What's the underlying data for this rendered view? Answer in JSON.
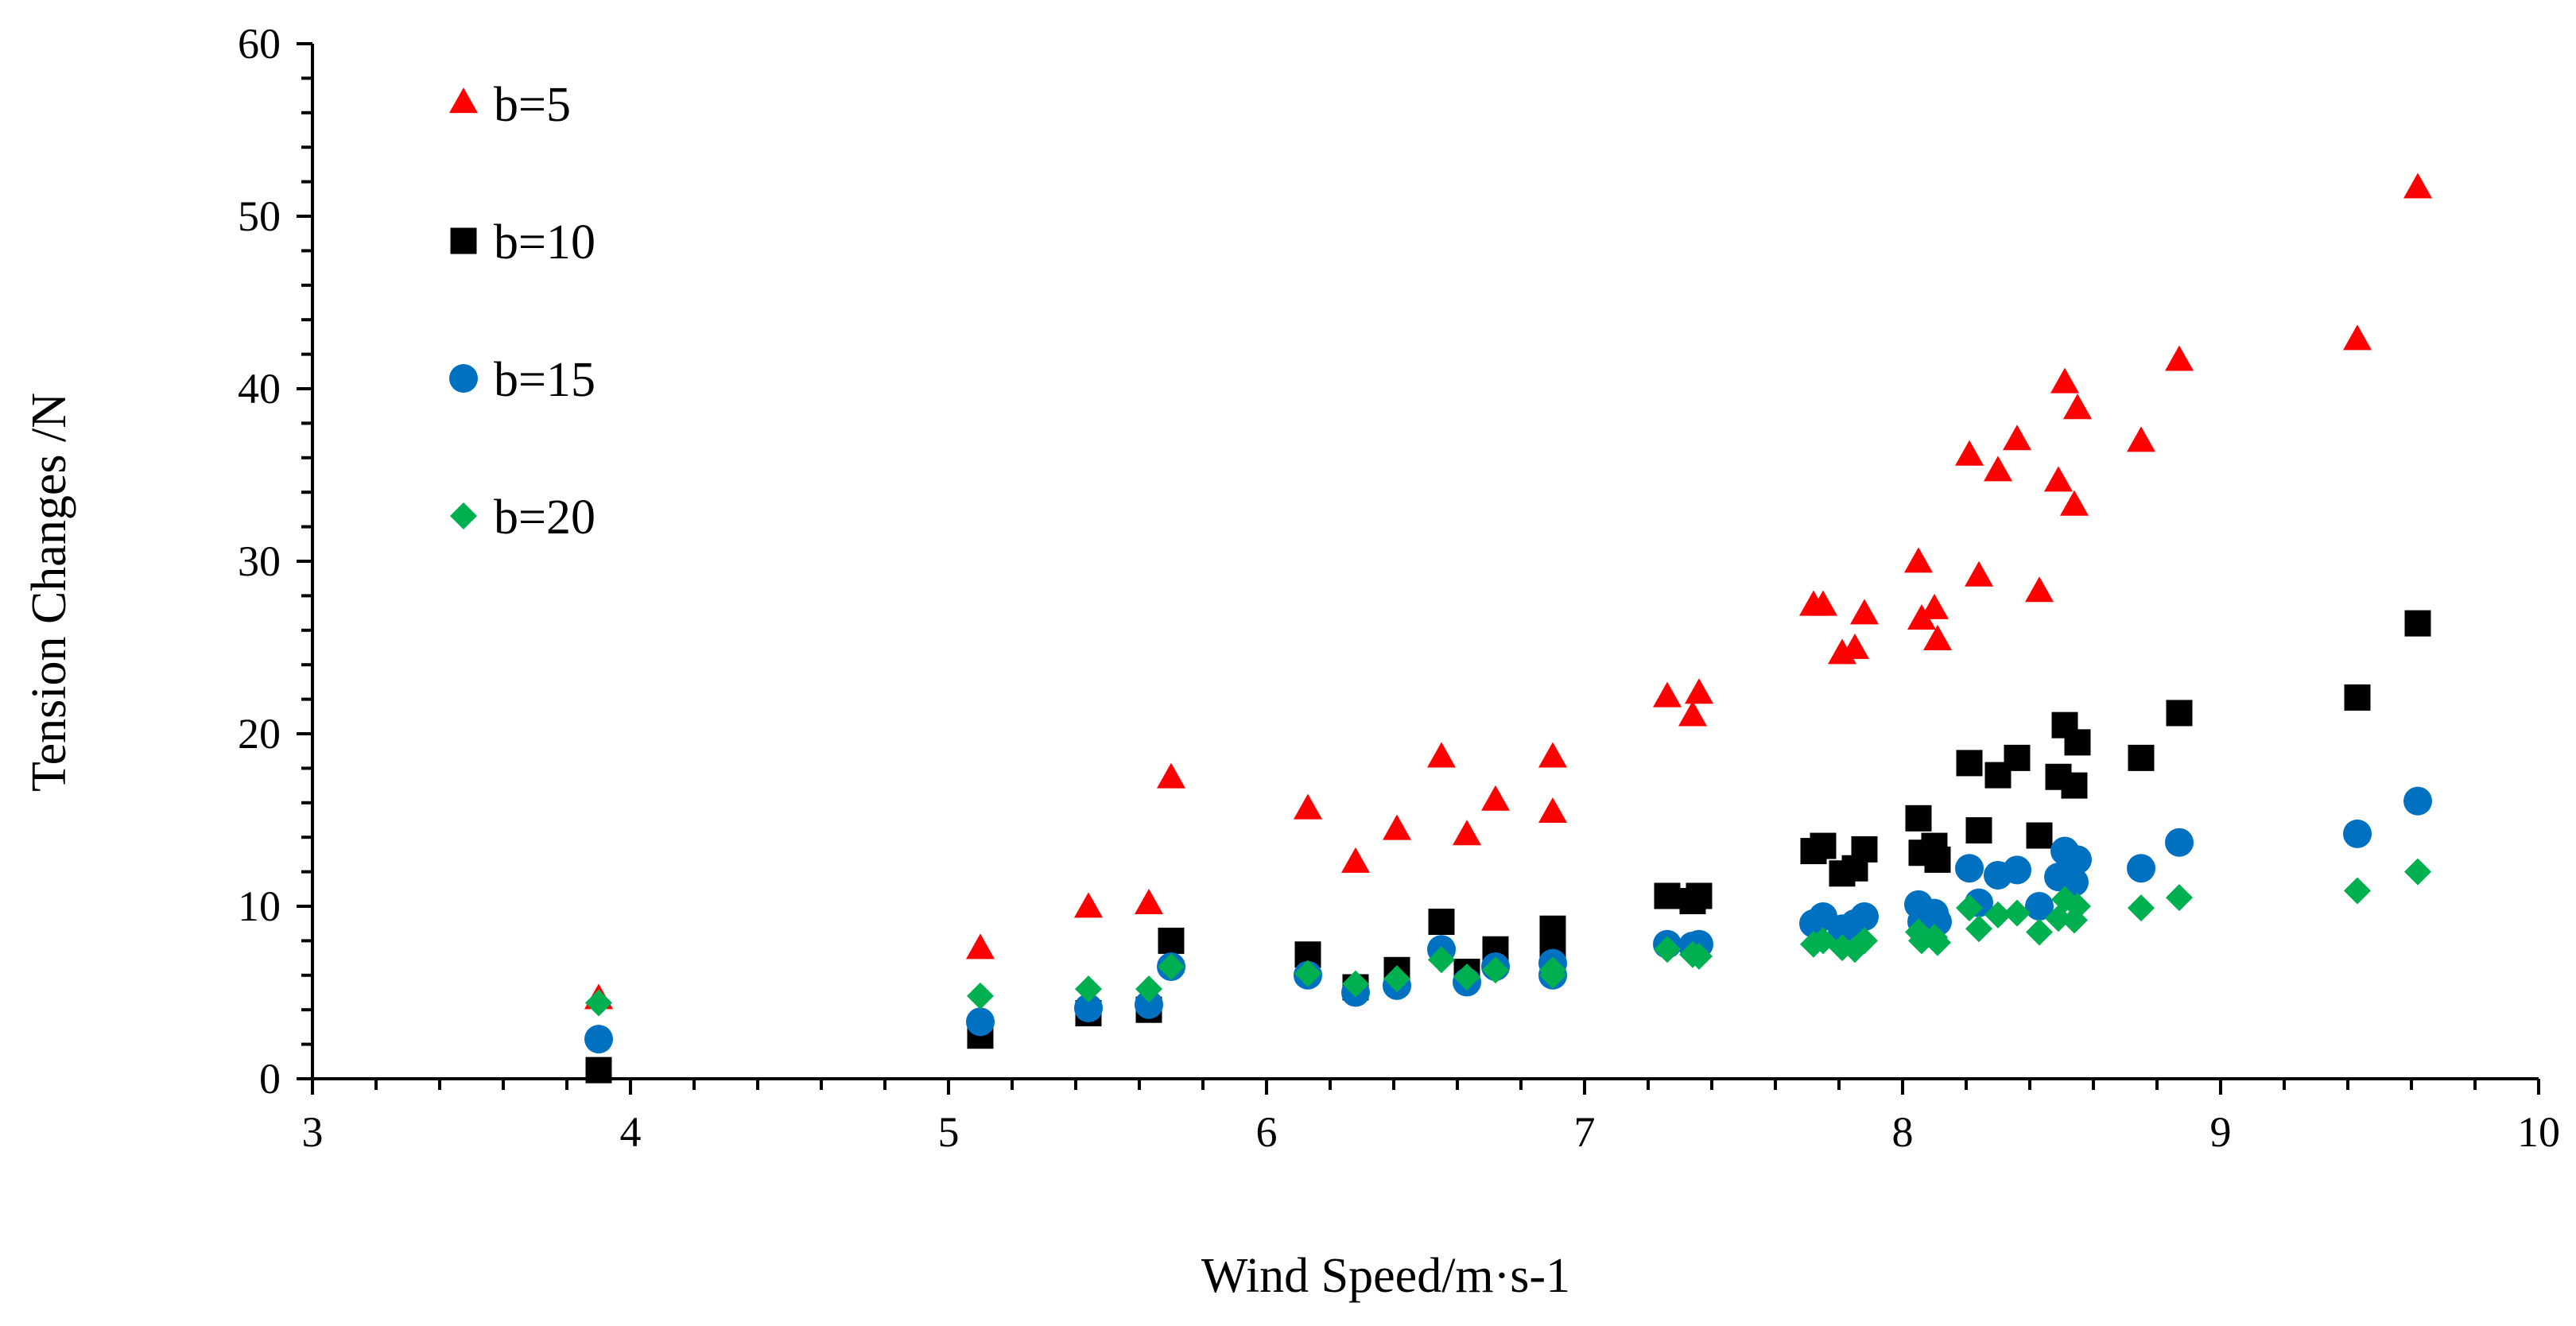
{
  "chart_data": {
    "type": "scatter",
    "title": "",
    "xlabel": "Wind Speed/m·s-1",
    "ylabel": "Tension Changes /N",
    "xlim": [
      3,
      10
    ],
    "ylim": [
      0,
      60
    ],
    "x_ticks": [
      3,
      4,
      5,
      6,
      7,
      8,
      9,
      10
    ],
    "y_ticks": [
      0,
      10,
      20,
      30,
      40,
      50,
      60
    ],
    "legend_position": "top-left",
    "grid": false,
    "series": [
      {
        "name": "b=5",
        "marker": "triangle",
        "color": "#ff0000",
        "points": [
          [
            3.9,
            4.6
          ],
          [
            5.1,
            7.5
          ],
          [
            5.44,
            9.9
          ],
          [
            5.63,
            10.1
          ],
          [
            5.7,
            17.4
          ],
          [
            6.13,
            15.6
          ],
          [
            6.28,
            12.5
          ],
          [
            6.41,
            14.4
          ],
          [
            6.55,
            18.6
          ],
          [
            6.63,
            14.1
          ],
          [
            6.72,
            16.1
          ],
          [
            6.9,
            18.6
          ],
          [
            6.9,
            15.4
          ],
          [
            7.26,
            22.1
          ],
          [
            7.34,
            21.0
          ],
          [
            7.36,
            22.3
          ],
          [
            7.72,
            27.4
          ],
          [
            7.75,
            27.4
          ],
          [
            7.81,
            24.6
          ],
          [
            7.85,
            24.9
          ],
          [
            7.88,
            26.9
          ],
          [
            8.05,
            29.9
          ],
          [
            8.06,
            26.6
          ],
          [
            8.1,
            27.2
          ],
          [
            8.11,
            25.4
          ],
          [
            8.21,
            36.1
          ],
          [
            8.24,
            29.1
          ],
          [
            8.3,
            35.2
          ],
          [
            8.36,
            37.0
          ],
          [
            8.43,
            28.2
          ],
          [
            8.49,
            34.6
          ],
          [
            8.51,
            40.3
          ],
          [
            8.54,
            33.2
          ],
          [
            8.55,
            38.8
          ],
          [
            8.75,
            36.9
          ],
          [
            8.87,
            41.6
          ],
          [
            9.43,
            42.8
          ],
          [
            9.62,
            51.6
          ]
        ]
      },
      {
        "name": "b=10",
        "marker": "square",
        "color": "#000000",
        "points": [
          [
            3.9,
            0.5
          ],
          [
            5.1,
            2.5
          ],
          [
            5.44,
            3.8
          ],
          [
            5.63,
            4.0
          ],
          [
            5.7,
            8.0
          ],
          [
            6.13,
            7.2
          ],
          [
            6.28,
            5.3
          ],
          [
            6.41,
            6.3
          ],
          [
            6.55,
            9.1
          ],
          [
            6.63,
            6.2
          ],
          [
            6.72,
            7.5
          ],
          [
            6.9,
            8.7
          ],
          [
            6.9,
            7.8
          ],
          [
            7.26,
            10.6
          ],
          [
            7.34,
            10.3
          ],
          [
            7.36,
            10.6
          ],
          [
            7.72,
            13.2
          ],
          [
            7.75,
            13.5
          ],
          [
            7.81,
            11.9
          ],
          [
            7.85,
            12.2
          ],
          [
            7.88,
            13.3
          ],
          [
            8.05,
            15.1
          ],
          [
            8.06,
            13.1
          ],
          [
            8.1,
            13.5
          ],
          [
            8.11,
            12.7
          ],
          [
            8.21,
            18.3
          ],
          [
            8.24,
            14.4
          ],
          [
            8.3,
            17.6
          ],
          [
            8.36,
            18.6
          ],
          [
            8.43,
            14.1
          ],
          [
            8.49,
            17.5
          ],
          [
            8.51,
            20.5
          ],
          [
            8.54,
            17.0
          ],
          [
            8.55,
            19.5
          ],
          [
            8.75,
            18.6
          ],
          [
            8.87,
            21.2
          ],
          [
            9.43,
            22.1
          ],
          [
            9.62,
            26.4
          ]
        ]
      },
      {
        "name": "b=15",
        "marker": "circle",
        "color": "#0070c0",
        "points": [
          [
            3.9,
            2.3
          ],
          [
            5.1,
            3.3
          ],
          [
            5.44,
            4.1
          ],
          [
            5.63,
            4.3
          ],
          [
            5.7,
            6.5
          ],
          [
            6.13,
            6.0
          ],
          [
            6.28,
            5.0
          ],
          [
            6.41,
            5.4
          ],
          [
            6.55,
            7.5
          ],
          [
            6.63,
            5.6
          ],
          [
            6.72,
            6.5
          ],
          [
            6.9,
            6.7
          ],
          [
            6.9,
            6.0
          ],
          [
            7.26,
            7.8
          ],
          [
            7.34,
            7.7
          ],
          [
            7.36,
            7.8
          ],
          [
            7.72,
            9.0
          ],
          [
            7.75,
            9.4
          ],
          [
            7.81,
            8.7
          ],
          [
            7.85,
            9.0
          ],
          [
            7.88,
            9.4
          ],
          [
            8.05,
            10.1
          ],
          [
            8.06,
            9.1
          ],
          [
            8.1,
            9.6
          ],
          [
            8.11,
            9.1
          ],
          [
            8.21,
            12.2
          ],
          [
            8.24,
            10.2
          ],
          [
            8.3,
            11.8
          ],
          [
            8.36,
            12.1
          ],
          [
            8.43,
            10.0
          ],
          [
            8.49,
            11.7
          ],
          [
            8.51,
            13.2
          ],
          [
            8.54,
            11.4
          ],
          [
            8.55,
            12.7
          ],
          [
            8.75,
            12.2
          ],
          [
            8.87,
            13.7
          ],
          [
            9.43,
            14.2
          ],
          [
            9.62,
            16.1
          ]
        ]
      },
      {
        "name": "b=20",
        "marker": "diamond",
        "color": "#00b050",
        "points": [
          [
            3.9,
            4.4
          ],
          [
            5.1,
            4.8
          ],
          [
            5.44,
            5.2
          ],
          [
            5.63,
            5.2
          ],
          [
            5.7,
            6.5
          ],
          [
            6.13,
            6.1
          ],
          [
            6.28,
            5.5
          ],
          [
            6.41,
            5.8
          ],
          [
            6.55,
            6.9
          ],
          [
            6.63,
            5.9
          ],
          [
            6.72,
            6.3
          ],
          [
            6.9,
            6.3
          ],
          [
            6.9,
            6.0
          ],
          [
            7.26,
            7.5
          ],
          [
            7.34,
            7.2
          ],
          [
            7.36,
            7.1
          ],
          [
            7.72,
            7.8
          ],
          [
            7.75,
            8.0
          ],
          [
            7.81,
            7.6
          ],
          [
            7.85,
            7.5
          ],
          [
            7.88,
            8.0
          ],
          [
            8.05,
            8.5
          ],
          [
            8.06,
            8.0
          ],
          [
            8.1,
            8.2
          ],
          [
            8.11,
            7.9
          ],
          [
            8.21,
            9.9
          ],
          [
            8.24,
            8.7
          ],
          [
            8.3,
            9.5
          ],
          [
            8.36,
            9.6
          ],
          [
            8.43,
            8.5
          ],
          [
            8.49,
            9.3
          ],
          [
            8.51,
            10.4
          ],
          [
            8.54,
            9.2
          ],
          [
            8.55,
            10.0
          ],
          [
            8.75,
            9.9
          ],
          [
            8.87,
            10.5
          ],
          [
            9.43,
            10.9
          ],
          [
            9.62,
            12.0
          ]
        ]
      }
    ]
  }
}
